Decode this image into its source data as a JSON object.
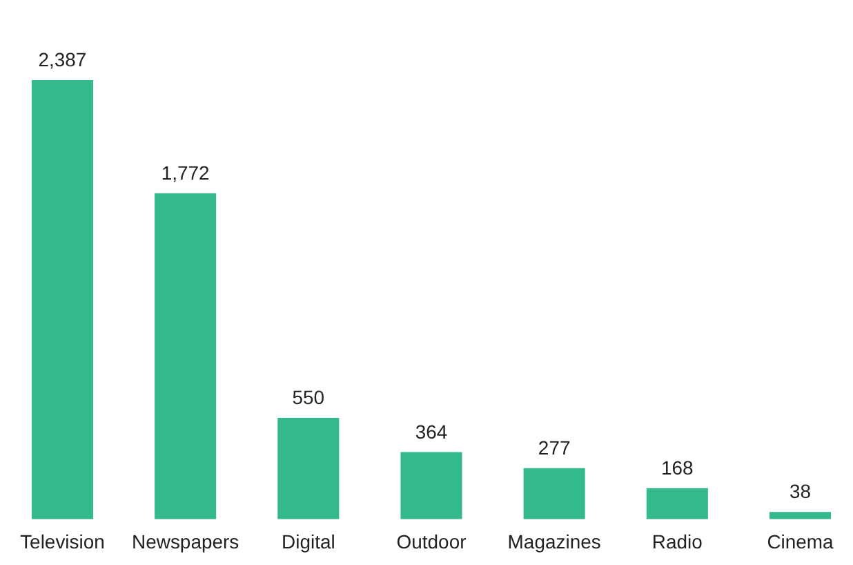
{
  "chart_data": {
    "type": "bar",
    "categories": [
      "Television",
      "Newspapers",
      "Digital",
      "Outdoor",
      "Magazines",
      "Radio",
      "Cinema"
    ],
    "values": [
      2387,
      1772,
      550,
      364,
      277,
      168,
      38
    ],
    "value_labels": [
      "2,387",
      "1,772",
      "550",
      "364",
      "277",
      "168",
      "38"
    ],
    "color": "#33b98a"
  }
}
